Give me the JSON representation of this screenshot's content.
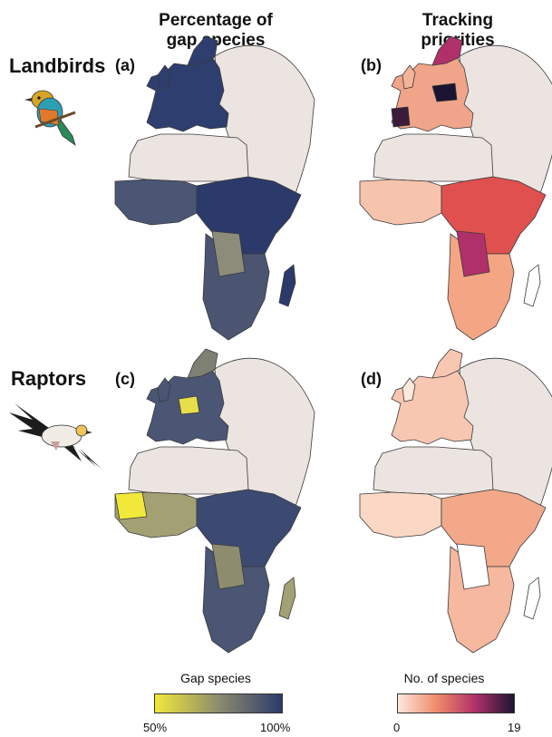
{
  "columns": {
    "left": "Percentage of\ngap species",
    "right": "Tracking\npriorities"
  },
  "rows": {
    "top": "Landbirds",
    "bottom": "Raptors"
  },
  "panels": {
    "a": "(a)",
    "b": "(b)",
    "c": "(c)",
    "d": "(d)"
  },
  "legend_gap": {
    "title": "Gap species",
    "min_label": "50%",
    "max_label": "100%",
    "colors": [
      "#f2e83a",
      "#8d8c6e",
      "#2c3a6c"
    ]
  },
  "legend_species": {
    "title": "No. of species",
    "min_label": "0",
    "max_label": "19",
    "colors": [
      "#fde8de",
      "#f08b6a",
      "#b0306a",
      "#1c1433"
    ]
  },
  "colors": {
    "no_data": "#ece4e0",
    "landmass_empty": "#ffffff"
  }
}
